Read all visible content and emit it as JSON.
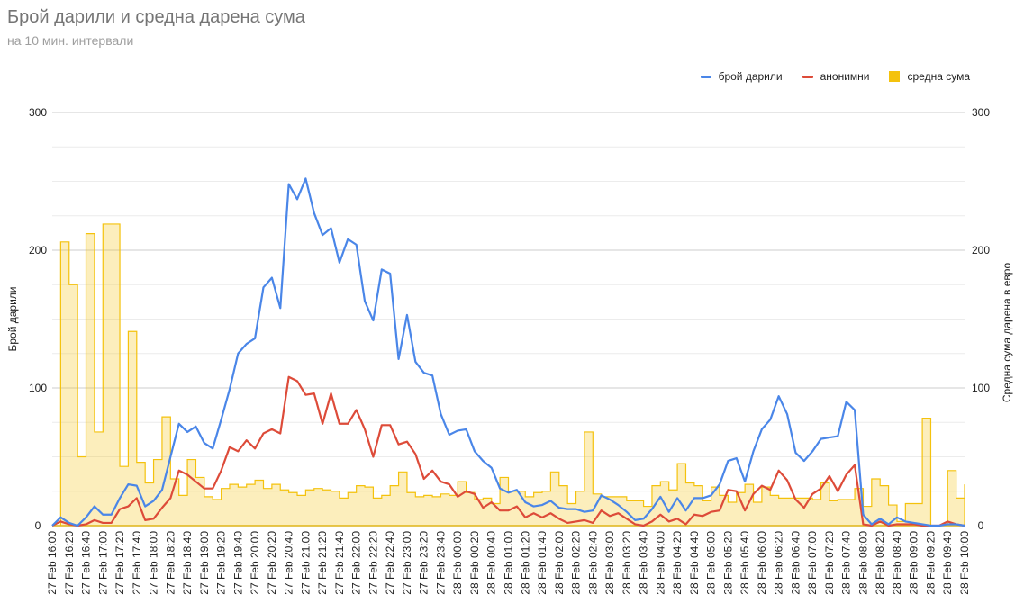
{
  "title": "Брой дарили и средна дарена сума",
  "subtitle": "на 10 мин. интервали",
  "colors": {
    "donors": "#4a86e8",
    "anonymous": "#dd4b39",
    "average": "#f4c20d",
    "grid": "#d9d9d9",
    "axis": "#333333"
  },
  "chart_data": {
    "type": "line",
    "title": "Брой дарили и средна дарена сума",
    "subtitle": "на 10 мин. интервали",
    "ylabel": "Брой дарили",
    "y2label": "Средна сума дарена в евро",
    "ylim": [
      0,
      300
    ],
    "y2lim": [
      0,
      300
    ],
    "yticks": [
      "0",
      "100",
      "200",
      "300"
    ],
    "y2ticks": [
      "0",
      "100",
      "200",
      "300"
    ],
    "grid": true,
    "legend_position": "top-right",
    "x_tick_labels": [
      "27 Feb 16:00",
      "27 Feb 16:20",
      "27 Feb 16:40",
      "27 Feb 17:00",
      "27 Feb 17:20",
      "27 Feb 17:40",
      "27 Feb 18:00",
      "27 Feb 18:20",
      "27 Feb 18:40",
      "27 Feb 19:00",
      "27 Feb 19:20",
      "27 Feb 19:40",
      "27 Feb 20:00",
      "27 Feb 20:20",
      "27 Feb 20:40",
      "27 Feb 21:00",
      "27 Feb 21:20",
      "27 Feb 21:40",
      "27 Feb 22:00",
      "27 Feb 22:20",
      "27 Feb 22:40",
      "27 Feb 23:00",
      "27 Feb 23:20",
      "27 Feb 23:40",
      "28 Feb 00:00",
      "28 Feb 00:20",
      "28 Feb 00:40",
      "28 Feb 01:00",
      "28 Feb 01:20",
      "28 Feb 01:40",
      "28 Feb 02:00",
      "28 Feb 02:20",
      "28 Feb 02:40",
      "28 Feb 03:00",
      "28 Feb 03:20",
      "28 Feb 03:40",
      "28 Feb 04:00",
      "28 Feb 04:20",
      "28 Feb 04:40",
      "28 Feb 05:00",
      "28 Feb 05:20",
      "28 Feb 05:40",
      "28 Feb 06:00",
      "28 Feb 06:20",
      "28 Feb 06:40",
      "28 Feb 07:00",
      "28 Feb 07:20",
      "28 Feb 07:40",
      "28 Feb 08:00",
      "28 Feb 08:20",
      "28 Feb 08:40",
      "28 Feb 09:00",
      "28 Feb 09:20",
      "28 Feb 09:40",
      "28 Feb 10:00"
    ],
    "series": [
      {
        "name": "брой дарили",
        "kind": "line",
        "axis": "left",
        "values": [
          0,
          6,
          2,
          0,
          6,
          14,
          8,
          8,
          20,
          30,
          29,
          14,
          18,
          26,
          50,
          74,
          68,
          72,
          60,
          56,
          77,
          99,
          125,
          132,
          136,
          173,
          180,
          158,
          248,
          237,
          252,
          227,
          211,
          216,
          191,
          208,
          204,
          163,
          149,
          186,
          183,
          121,
          153,
          119,
          111,
          109,
          81,
          66,
          69,
          70,
          54,
          47,
          42,
          27,
          24,
          26,
          17,
          14,
          15,
          18,
          13,
          12,
          12,
          10,
          11,
          22,
          19,
          15,
          10,
          4,
          5,
          12,
          21,
          10,
          20,
          11,
          20,
          20,
          22,
          30,
          47,
          49,
          32,
          54,
          70,
          77,
          94,
          81,
          53,
          47,
          54,
          63,
          64,
          65,
          90,
          84,
          8,
          1,
          5,
          1,
          6,
          3,
          2,
          1,
          0,
          0,
          1,
          1,
          0
        ]
      },
      {
        "name": "анонимни",
        "kind": "line",
        "axis": "left",
        "values": [
          0,
          3,
          1,
          0,
          1,
          4,
          2,
          2,
          12,
          14,
          20,
          4,
          5,
          13,
          20,
          40,
          37,
          32,
          27,
          27,
          40,
          57,
          54,
          62,
          56,
          67,
          70,
          67,
          108,
          105,
          95,
          96,
          74,
          96,
          74,
          74,
          84,
          70,
          50,
          73,
          73,
          59,
          61,
          52,
          34,
          40,
          32,
          30,
          21,
          25,
          23,
          13,
          17,
          11,
          11,
          14,
          6,
          9,
          6,
          9,
          5,
          2,
          3,
          4,
          2,
          11,
          7,
          9,
          5,
          1,
          0,
          3,
          8,
          3,
          5,
          1,
          8,
          7,
          10,
          11,
          26,
          25,
          11,
          23,
          29,
          26,
          40,
          33,
          19,
          13,
          23,
          27,
          36,
          25,
          37,
          44,
          1,
          0,
          3,
          0,
          1,
          1,
          1,
          0,
          0,
          0,
          3,
          1,
          0
        ]
      },
      {
        "name": "средна сума",
        "kind": "step-area",
        "axis": "right",
        "values": [
          0,
          206,
          175,
          50,
          212,
          68,
          219,
          219,
          43,
          141,
          46,
          31,
          48,
          79,
          34,
          22,
          48,
          35,
          21,
          19,
          27,
          30,
          28,
          30,
          33,
          27,
          30,
          26,
          24,
          22,
          26,
          27,
          26,
          25,
          20,
          24,
          29,
          28,
          20,
          22,
          29,
          39,
          24,
          21,
          22,
          21,
          23,
          22,
          32,
          24,
          19,
          20,
          16,
          35,
          25,
          25,
          21,
          24,
          25,
          39,
          29,
          16,
          25,
          68,
          23,
          21,
          21,
          21,
          18,
          18,
          14,
          29,
          32,
          26,
          45,
          31,
          29,
          18,
          28,
          22,
          17,
          24,
          30,
          17,
          28,
          22,
          20,
          20,
          20,
          20,
          19,
          31,
          18,
          19,
          19,
          27,
          14,
          34,
          29,
          15,
          3,
          16,
          16,
          78,
          0,
          0,
          40,
          20,
          30
        ]
      }
    ]
  }
}
